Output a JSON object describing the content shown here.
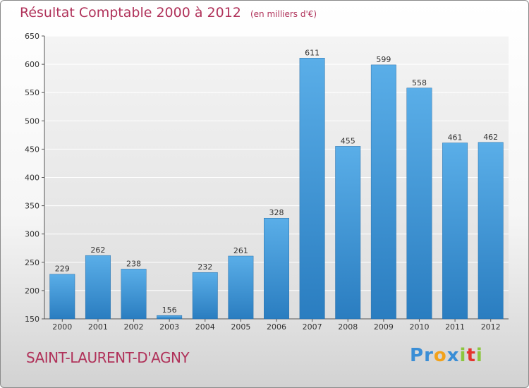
{
  "header": {
    "title": "Résultat Comptable 2000 à 2012",
    "unit": "(en milliers d'€)"
  },
  "footer": {
    "commune": "SAINT-LAURENT-D'AGNY",
    "logo_letters": [
      {
        "char": "P",
        "color": "#3a8ed6"
      },
      {
        "char": "r",
        "color": "#3a8ed6"
      },
      {
        "char": "o",
        "color": "#f2a21b"
      },
      {
        "char": "x",
        "color": "#3a8ed6"
      },
      {
        "char": "i",
        "color": "#8cc63e"
      },
      {
        "char": "t",
        "color": "#e4342f"
      },
      {
        "char": "i",
        "color": "#8cc63e"
      }
    ]
  },
  "chart_data": {
    "type": "bar",
    "categories": [
      "2000",
      "2001",
      "2002",
      "2003",
      "2004",
      "2005",
      "2006",
      "2007",
      "2008",
      "2009",
      "2010",
      "2011",
      "2012"
    ],
    "values": [
      229,
      262,
      238,
      156,
      232,
      261,
      328,
      611,
      455,
      599,
      558,
      461,
      462
    ],
    "value_labels": [
      "229",
      "262",
      "238",
      "156",
      "232",
      "261",
      "328",
      "611",
      "455",
      "599",
      "558",
      "461",
      "462"
    ],
    "ylim": [
      150,
      650
    ],
    "yticks": [
      "150",
      "200",
      "250",
      "300",
      "350",
      "400",
      "450",
      "500",
      "550",
      "600",
      "650"
    ],
    "grid": true,
    "bar_color_top": "#5aaee8",
    "bar_color_bottom": "#2a7dc0"
  }
}
